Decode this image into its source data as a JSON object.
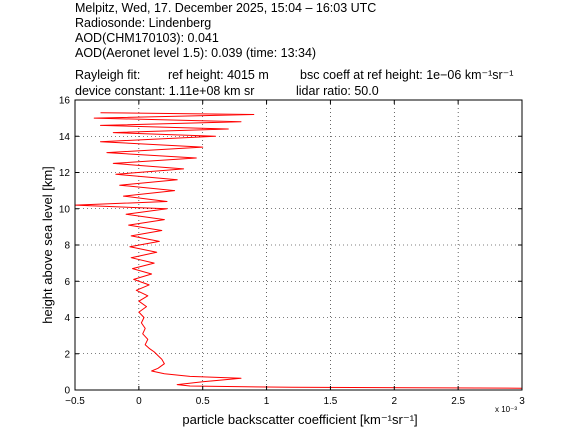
{
  "header": {
    "line1": "Melpitz, Wed, 17. December 2025, 15:04 – 16:03 UTC",
    "line2": "Radiosonde: Lindenberg",
    "line3": "AOD(CHM170103): 0.041",
    "line4": "AOD(Aeronet level 1.5): 0.039   (time: 13:34)",
    "rayleigh_label": "Rayleigh fit:",
    "ref_height": "ref height: 4015 m",
    "bsc_coeff": "bsc coeff at ref height: 1e−06 km⁻¹sr⁻¹",
    "device_constant": "device constant: 1.11e+08 km sr",
    "lidar_ratio": "lidar ratio: 50.0"
  },
  "chart_data": {
    "type": "line",
    "title": "",
    "xlabel": "particle backscatter coefficient [km⁻¹sr⁻¹]",
    "ylabel": "height above sea level [km]",
    "x_exponent_label": "x 10⁻³",
    "x_ticks": [
      "−0.5",
      "0",
      "0.5",
      "1",
      "1.5",
      "2",
      "2.5",
      "3"
    ],
    "y_ticks": [
      "0",
      "2",
      "4",
      "6",
      "8",
      "10",
      "12",
      "14",
      "16"
    ],
    "xlim": [
      -0.0005,
      0.003
    ],
    "ylim": [
      0,
      16
    ],
    "grid": true,
    "line_color": "#ff0000",
    "series": [
      {
        "points": [
          [
            0.003,
            0.1
          ],
          [
            0.0012,
            0.15
          ],
          [
            0.0004,
            0.22
          ],
          [
            0.0003,
            0.3
          ],
          [
            0.0005,
            0.45
          ],
          [
            0.0008,
            0.65
          ],
          [
            0.0004,
            0.75
          ],
          [
            0.0002,
            0.9
          ],
          [
            0.0001,
            1.05
          ],
          [
            0.00015,
            1.2
          ],
          [
            0.0002,
            1.45
          ],
          [
            0.00018,
            1.7
          ],
          [
            0.00015,
            1.9
          ],
          [
            0.00012,
            2.1
          ],
          [
            8e-05,
            2.3
          ],
          [
            5e-05,
            2.5
          ],
          [
            7e-05,
            2.8
          ],
          [
            3e-05,
            3.1
          ],
          [
            5e-05,
            3.4
          ],
          [
            2e-05,
            3.7
          ],
          [
            4e-05,
            4.0
          ],
          [
            0.0,
            4.3
          ],
          [
            6e-05,
            4.6
          ],
          [
            0.0,
            4.9
          ],
          [
            7e-05,
            5.2
          ],
          [
            -2e-05,
            5.5
          ],
          [
            8e-05,
            5.8
          ],
          [
            -4e-05,
            6.1
          ],
          [
            0.0001,
            6.4
          ],
          [
            -5e-05,
            6.7
          ],
          [
            0.00012,
            7.0
          ],
          [
            -6e-05,
            7.3
          ],
          [
            0.00014,
            7.6
          ],
          [
            -7e-05,
            7.9
          ],
          [
            0.00016,
            8.2
          ],
          [
            -6e-05,
            8.5
          ],
          [
            0.00018,
            8.8
          ],
          [
            -8e-05,
            9.1
          ],
          [
            0.0002,
            9.4
          ],
          [
            -0.0001,
            9.7
          ],
          [
            0.00022,
            10.0
          ],
          [
            -0.0005,
            10.2
          ],
          [
            0.00022,
            10.4
          ],
          [
            -0.00012,
            10.7
          ],
          [
            0.00028,
            11.0
          ],
          [
            -0.00015,
            11.3
          ],
          [
            0.0003,
            11.6
          ],
          [
            -0.00018,
            11.9
          ],
          [
            0.00035,
            12.2
          ],
          [
            -0.0002,
            12.5
          ],
          [
            0.00045,
            12.8
          ],
          [
            -0.00025,
            13.1
          ],
          [
            0.0005,
            13.4
          ],
          [
            -0.0003,
            13.7
          ],
          [
            0.0006,
            14.0
          ],
          [
            -0.0002,
            14.2
          ],
          [
            0.0007,
            14.4
          ],
          [
            -0.0003,
            14.6
          ],
          [
            0.0008,
            14.8
          ],
          [
            -0.00035,
            15.0
          ],
          [
            0.0009,
            15.2
          ],
          [
            -0.0003,
            15.3
          ]
        ]
      }
    ]
  }
}
